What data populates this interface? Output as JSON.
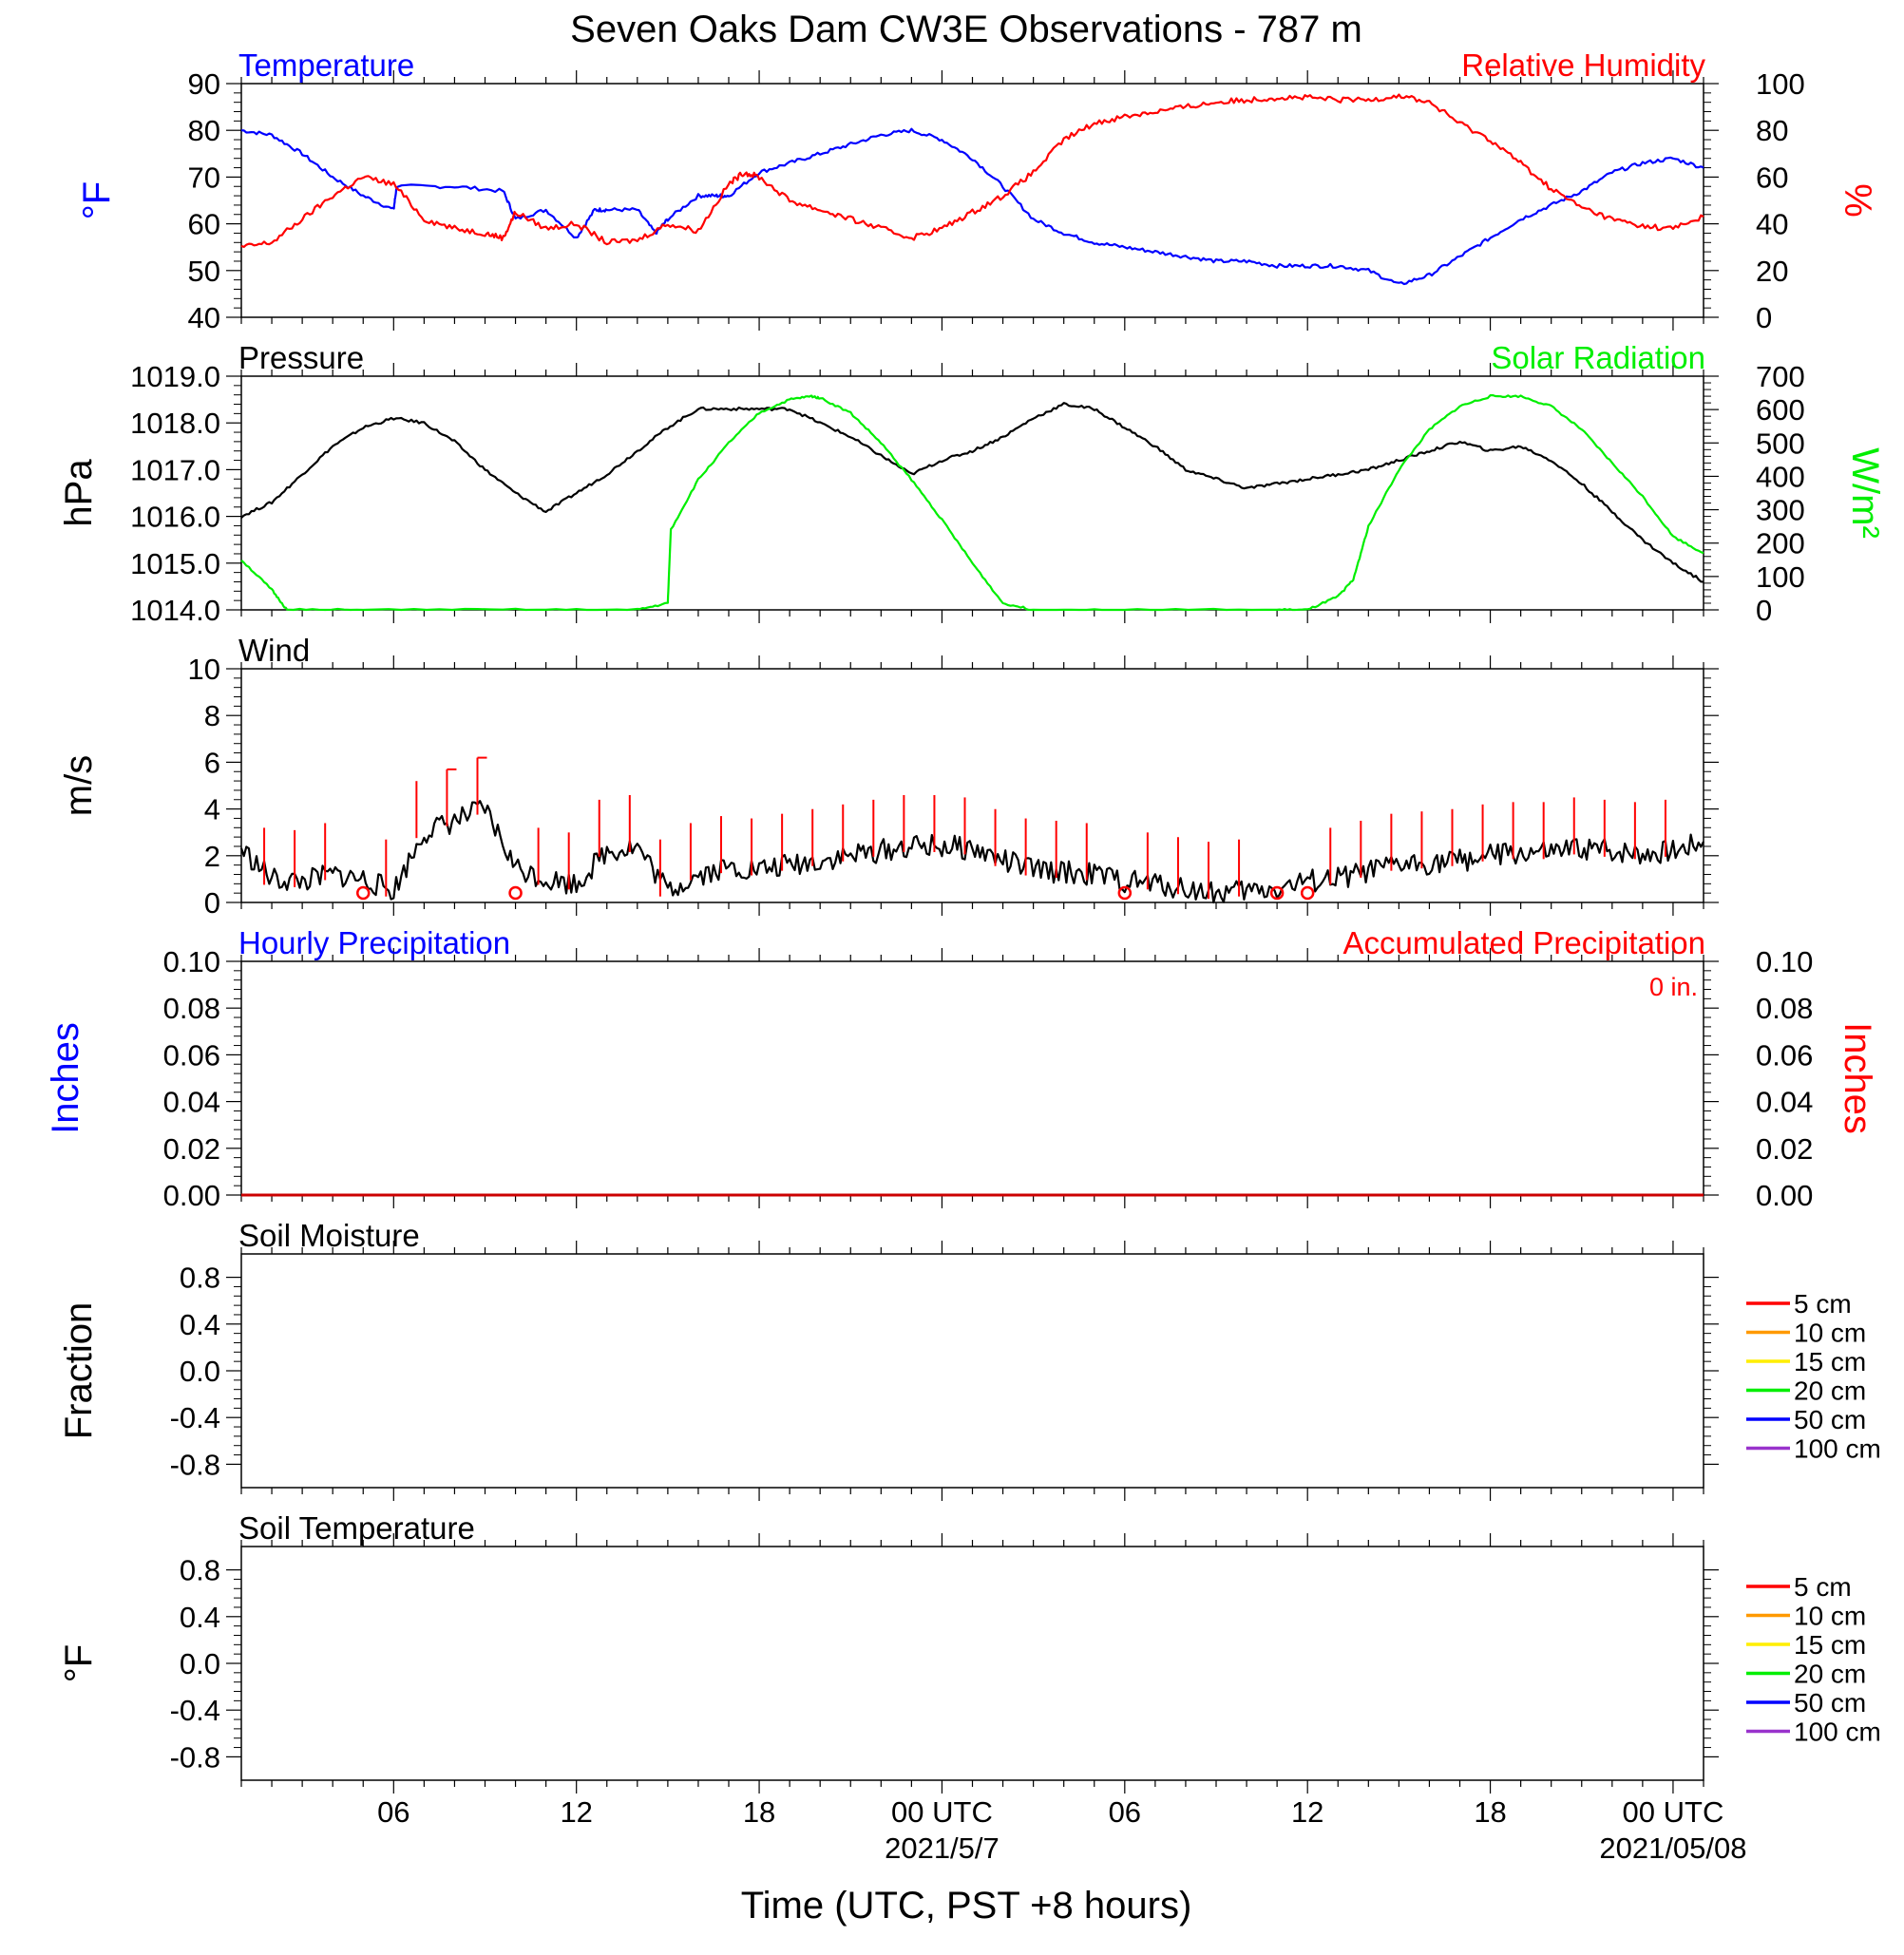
{
  "title": "Seven Oaks Dam CW3E Observations - 787 m",
  "xlabel": "Time (UTC, PST +8 hours)",
  "colors": {
    "temperature": "#0000ff",
    "humidity": "#ff0000",
    "pressure": "#000000",
    "solar": "#00ee00",
    "wind": "#000000",
    "barb": "#ff0000",
    "precip_hourly": "#0000ff",
    "precip_accum": "#cc0000"
  },
  "x_ticks": [
    {
      "label": "06",
      "date": ""
    },
    {
      "label": "12",
      "date": ""
    },
    {
      "label": "18",
      "date": ""
    },
    {
      "label": "00 UTC",
      "date": "2021/5/7"
    },
    {
      "label": "06",
      "date": ""
    },
    {
      "label": "12",
      "date": ""
    },
    {
      "label": "18",
      "date": ""
    },
    {
      "label": "00 UTC",
      "date": "2021/05/08"
    }
  ],
  "soil_legend": [
    {
      "label": "5 cm",
      "color": "#ff0000"
    },
    {
      "label": "10 cm",
      "color": "#ff9900"
    },
    {
      "label": "15 cm",
      "color": "#ffee00"
    },
    {
      "label": "20 cm",
      "color": "#00ee00"
    },
    {
      "label": "50 cm",
      "color": "#0000ff"
    },
    {
      "label": "100 cm",
      "color": "#9933cc"
    }
  ],
  "chart_data": [
    {
      "type": "line",
      "panel": "temperature-humidity",
      "title_left": "Temperature",
      "title_right": "Relative Humidity",
      "ylabel_left": "°F",
      "ylabel_right": "%",
      "x_hours_range": [
        1,
        49
      ],
      "ylim_left": [
        40,
        90
      ],
      "ylim_right": [
        0,
        100
      ],
      "yticks_left": [
        "40",
        "50",
        "60",
        "70",
        "80",
        "90"
      ],
      "yticks_right": [
        "0",
        "20",
        "40",
        "60",
        "80",
        "100"
      ],
      "series": [
        {
          "axis": "left",
          "x": [
            1,
            2,
            3,
            4,
            5,
            6,
            6.1,
            8,
            9.6,
            10,
            11,
            12,
            12.6,
            13,
            14,
            14.6,
            15,
            16,
            16.6,
            17,
            18,
            19,
            20,
            21,
            22,
            23,
            24,
            25,
            26,
            27,
            28,
            29,
            30,
            31,
            32,
            33,
            34,
            35,
            36,
            37,
            38,
            39,
            40,
            41,
            42,
            43,
            44,
            45,
            46,
            47,
            48,
            49
          ],
          "y": [
            80,
            79,
            75,
            70,
            66,
            63,
            68,
            68,
            67,
            61,
            63,
            57,
            63,
            63,
            63,
            58,
            61,
            66,
            66,
            66,
            71,
            73,
            75,
            77,
            79,
            80,
            78,
            74,
            68,
            61,
            58,
            56,
            55,
            54,
            53,
            52,
            52,
            51,
            51,
            51,
            50,
            47,
            49,
            53,
            57,
            61,
            64,
            67,
            71,
            73,
            74,
            72
          ]
        },
        {
          "axis": "right",
          "x": [
            1,
            2,
            3,
            4,
            5,
            6,
            7,
            8,
            9,
            9.6,
            10,
            11,
            12,
            13,
            14,
            15,
            16,
            17,
            17.5,
            18,
            19,
            20,
            21,
            22,
            23,
            24,
            25,
            26,
            27,
            28,
            29,
            30,
            31,
            32,
            33,
            34,
            35,
            36,
            37,
            38,
            39,
            40,
            41,
            42,
            43,
            44,
            45,
            46,
            47,
            48,
            49
          ],
          "y": [
            30,
            32,
            42,
            52,
            60,
            57,
            42,
            38,
            36,
            34,
            45,
            38,
            40,
            32,
            33,
            40,
            37,
            57,
            62,
            60,
            50,
            46,
            42,
            38,
            34,
            38,
            45,
            52,
            62,
            76,
            83,
            86,
            88,
            90,
            92,
            93,
            94,
            94,
            93,
            93,
            95,
            92,
            83,
            76,
            66,
            55,
            47,
            42,
            39,
            38,
            43
          ]
        }
      ]
    },
    {
      "type": "line",
      "panel": "pressure-solar",
      "title_left": "Pressure",
      "title_right": "Solar Radiation",
      "ylabel_left": "hPa",
      "ylabel_right": "W/m²",
      "x_hours_range": [
        1,
        49
      ],
      "ylim_left": [
        1014,
        1019
      ],
      "ylim_right": [
        0,
        700
      ],
      "yticks_left": [
        "1014.0",
        "1015.0",
        "1016.0",
        "1017.0",
        "1018.0",
        "1019.0"
      ],
      "yticks_right": [
        "0",
        "100",
        "200",
        "300",
        "400",
        "500",
        "600",
        "700"
      ],
      "series": [
        {
          "axis": "left",
          "x": [
            1,
            2,
            3,
            4,
            5,
            6,
            7,
            8,
            9,
            10,
            11,
            12,
            13,
            14,
            15,
            16,
            17,
            18,
            19,
            20,
            21,
            22,
            23,
            24,
            25,
            26,
            27,
            28,
            29,
            30,
            31,
            32,
            33,
            34,
            35,
            36,
            37,
            38,
            39,
            40,
            41,
            42,
            43,
            44,
            45,
            46,
            47,
            48,
            49
          ],
          "y": [
            1016.0,
            1016.3,
            1016.9,
            1017.5,
            1017.9,
            1018.1,
            1018.0,
            1017.6,
            1017.0,
            1016.5,
            1016.1,
            1016.5,
            1016.9,
            1017.4,
            1017.9,
            1018.3,
            1018.3,
            1018.3,
            1018.3,
            1018.0,
            1017.7,
            1017.3,
            1016.9,
            1017.2,
            1017.4,
            1017.7,
            1018.1,
            1018.4,
            1018.3,
            1017.9,
            1017.5,
            1017.0,
            1016.8,
            1016.6,
            1016.7,
            1016.8,
            1016.9,
            1017.0,
            1017.2,
            1017.4,
            1017.6,
            1017.4,
            1017.5,
            1017.2,
            1016.7,
            1016.1,
            1015.5,
            1015.0,
            1014.6
          ]
        },
        {
          "axis": "right",
          "x": [
            1,
            2,
            2.5,
            5,
            10,
            14,
            15,
            15.1,
            16,
            17,
            18,
            19,
            19.7,
            20,
            21,
            22,
            23,
            24,
            25,
            26,
            27,
            30,
            35,
            36,
            37,
            37.5,
            38,
            39,
            40,
            41,
            42,
            43,
            44,
            45,
            46,
            47,
            48,
            49
          ],
          "y": [
            150,
            60,
            0,
            0,
            0,
            0,
            20,
            240,
            390,
            500,
            590,
            630,
            640,
            635,
            590,
            500,
            390,
            270,
            140,
            20,
            0,
            0,
            0,
            0,
            40,
            90,
            250,
            420,
            540,
            610,
            640,
            640,
            610,
            540,
            440,
            340,
            220,
            170
          ]
        }
      ]
    },
    {
      "type": "line",
      "panel": "wind",
      "title_left": "Wind",
      "ylabel_left": "m/s",
      "x_hours_range": [
        1,
        49
      ],
      "ylim_left": [
        0,
        10
      ],
      "yticks_left": [
        "0",
        "2",
        "4",
        "6",
        "8",
        "10"
      ],
      "series": [
        {
          "axis": "left",
          "x": [
            1,
            2,
            3,
            4,
            5,
            6,
            7,
            8,
            9,
            10,
            11,
            12,
            13,
            14,
            15,
            16,
            17,
            18,
            19,
            20,
            21,
            22,
            23,
            24,
            25,
            26,
            27,
            28,
            29,
            30,
            31,
            32,
            33,
            34,
            35,
            36,
            37,
            38,
            39,
            40,
            41,
            42,
            43,
            44,
            45,
            46,
            47,
            48,
            49
          ],
          "y": [
            2.3,
            1.0,
            0.9,
            1.2,
            1.0,
            0.5,
            3.0,
            3.5,
            4.0,
            1.5,
            1.0,
            0.8,
            2.2,
            2.4,
            0.5,
            1.2,
            1.5,
            1.4,
            1.6,
            1.8,
            2.0,
            2.2,
            2.4,
            2.4,
            2.3,
            1.8,
            1.4,
            1.3,
            1.2,
            0.9,
            0.8,
            0.6,
            0.4,
            0.5,
            0.6,
            0.9,
            1.0,
            1.3,
            1.6,
            1.7,
            1.8,
            2.0,
            2.1,
            2.1,
            2.3,
            2.2,
            2.1,
            2.2,
            2.6
          ]
        }
      ],
      "calm_circles_hours": [
        5,
        10,
        30,
        35,
        36
      ]
    },
    {
      "type": "line",
      "panel": "precipitation",
      "title_left": "Hourly Precipitation",
      "title_right": "Accumulated Precipitation",
      "annotation": "0 in.",
      "ylabel_left": "Inches",
      "ylabel_right": "Inches",
      "x_hours_range": [
        1,
        49
      ],
      "ylim_left": [
        0,
        0.1
      ],
      "ylim_right": [
        0,
        0.1
      ],
      "yticks_left": [
        "0.00",
        "0.02",
        "0.04",
        "0.06",
        "0.08",
        "0.10"
      ],
      "yticks_right": [
        "0.00",
        "0.02",
        "0.04",
        "0.06",
        "0.08",
        "0.10"
      ],
      "series": [
        {
          "axis": "left",
          "x": [
            1,
            49
          ],
          "y": [
            0,
            0
          ]
        },
        {
          "axis": "right",
          "x": [
            1,
            49
          ],
          "y": [
            0,
            0
          ]
        }
      ]
    },
    {
      "type": "line",
      "panel": "soil-moisture",
      "title_left": "Soil Moisture",
      "ylabel_left": "Fraction",
      "x_hours_range": [
        1,
        49
      ],
      "ylim_left": [
        -1,
        1
      ],
      "yticks_left": [
        "-0.8",
        "-0.4",
        "0.0",
        "0.4",
        "0.8"
      ],
      "series": []
    },
    {
      "type": "line",
      "panel": "soil-temperature",
      "title_left": "Soil Temperature",
      "ylabel_left": "°F",
      "x_hours_range": [
        1,
        49
      ],
      "ylim_left": [
        -1,
        1
      ],
      "yticks_left": [
        "-0.8",
        "-0.4",
        "0.0",
        "0.4",
        "0.8"
      ],
      "series": []
    }
  ]
}
